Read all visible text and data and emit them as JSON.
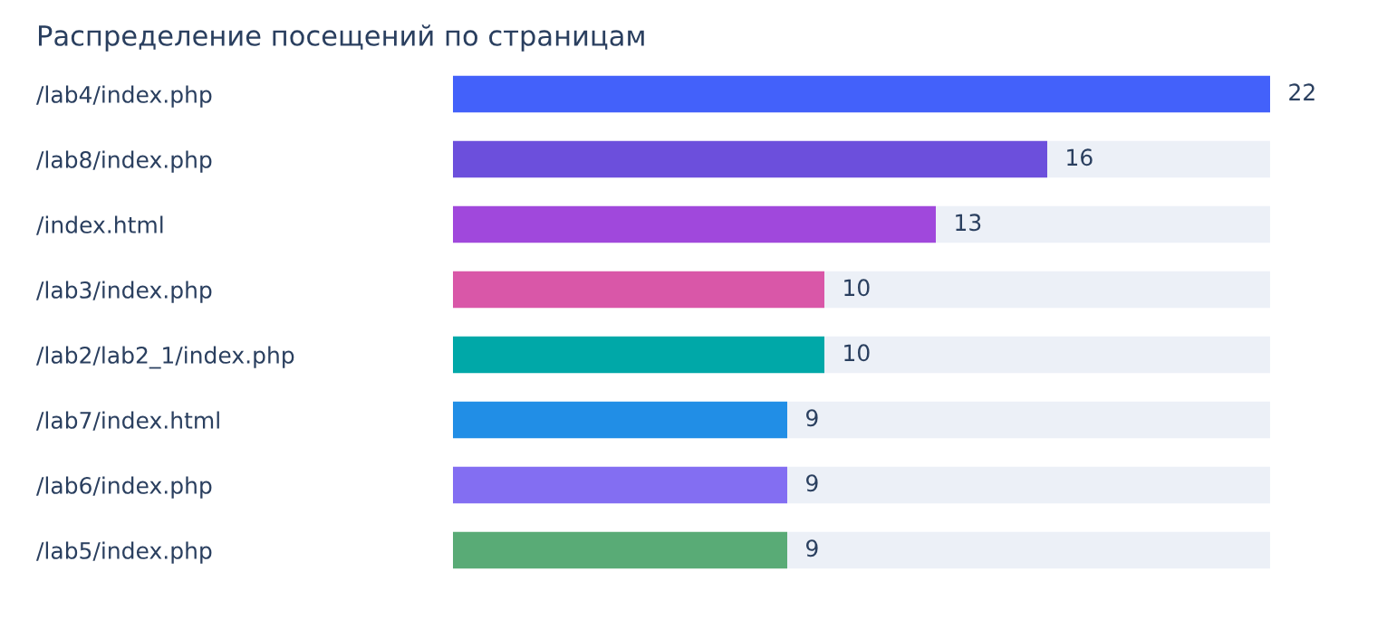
{
  "chart_data": {
    "type": "bar",
    "orientation": "horizontal",
    "stacked": true,
    "title": "Распределение посещений по страницам",
    "categories": [
      "/lab4/index.php",
      "/lab8/index.php",
      "/index.html",
      "/lab3/index.php",
      "/lab2/lab2_1/index.php",
      "/lab7/index.html",
      "/lab6/index.php",
      "/lab5/index.php"
    ],
    "series": [
      {
        "values": [
          22,
          16,
          13,
          10,
          10,
          9,
          9,
          9
        ],
        "colors": [
          "#4361fa",
          "#6c4fdc",
          "#a048dc",
          "#d957a8",
          "#00a8a8",
          "#218ee6",
          "#836ef2",
          "#59ab76"
        ],
        "value_labels": [
          "22",
          "16",
          "13",
          "10",
          "10",
          "9",
          "9",
          "9"
        ]
      },
      {
        "values": [
          0,
          6,
          9,
          12,
          12,
          13,
          13,
          13
        ],
        "color": "#ecf0f7"
      }
    ],
    "grid": false,
    "legend": false
  }
}
